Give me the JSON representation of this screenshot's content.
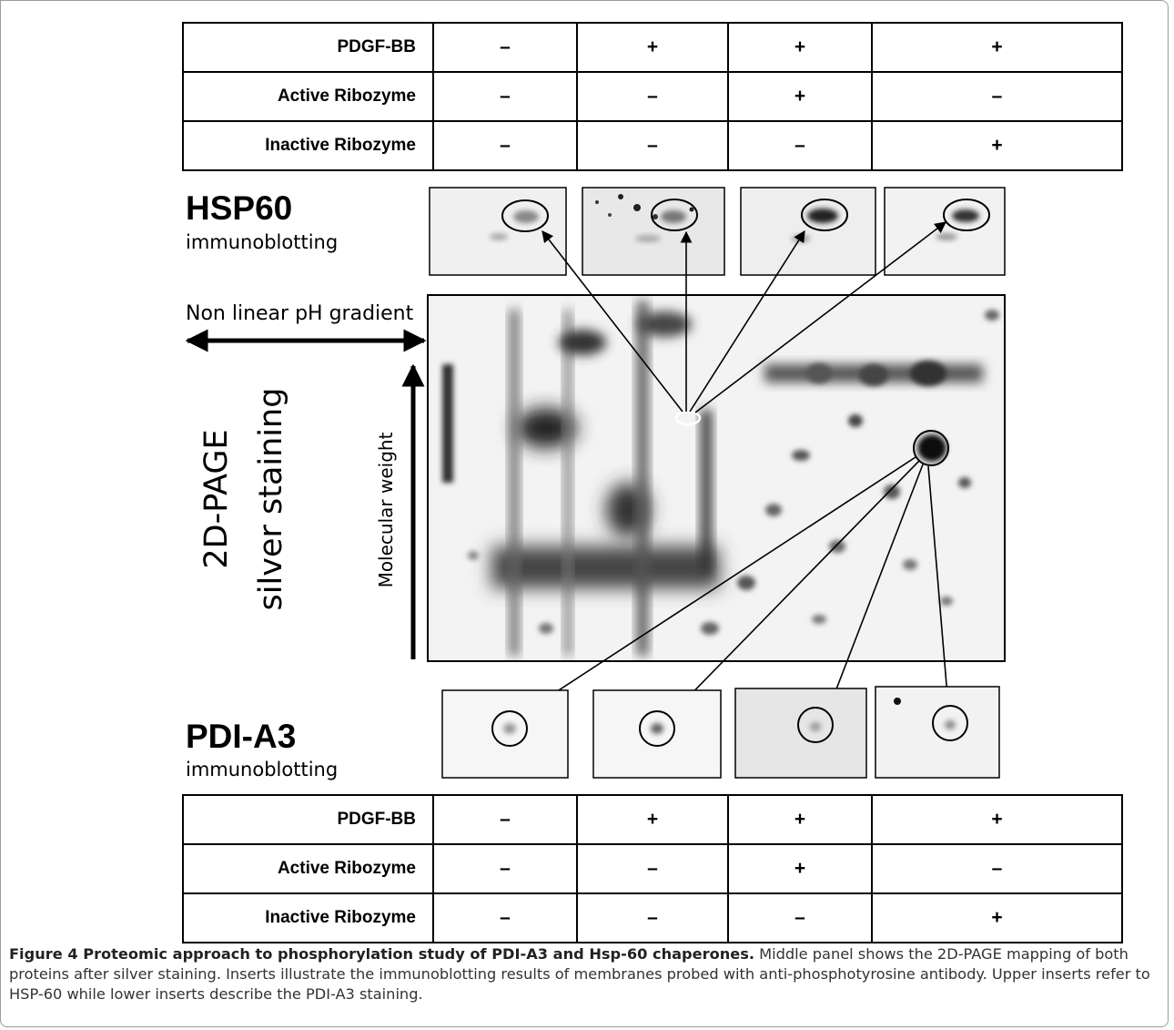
{
  "conditions_table": {
    "rows": [
      {
        "label": "PDGF-BB",
        "values": [
          "–",
          "+",
          "+",
          "+"
        ]
      },
      {
        "label": "Active Ribozyme",
        "values": [
          "–",
          "–",
          "+",
          "–"
        ]
      },
      {
        "label": "Inactive Ribozyme",
        "values": [
          "–",
          "–",
          "–",
          "+"
        ]
      }
    ]
  },
  "hsp60": {
    "title": "HSP60",
    "subtitle": "immunoblotting"
  },
  "pdia3": {
    "title": "PDI-A3",
    "subtitle": "immunoblotting"
  },
  "gel": {
    "ph_label": "Non linear pH gradient",
    "mw_label": "Molecular weight",
    "title_line1": "2D-PAGE",
    "title_line2": "silver staining"
  },
  "caption": {
    "title": "Figure 4 Proteomic approach to phosphorylation study of PDI-A3 and Hsp-60 chaperones.",
    "text": " Middle panel shows the 2D-PAGE mapping of both proteins after silver staining. Inserts illustrate the immunoblotting results of membranes probed with anti-phosphotyrosine antibody. Upper inserts refer to HSP-60 while lower inserts describe the PDI-A3 staining."
  }
}
